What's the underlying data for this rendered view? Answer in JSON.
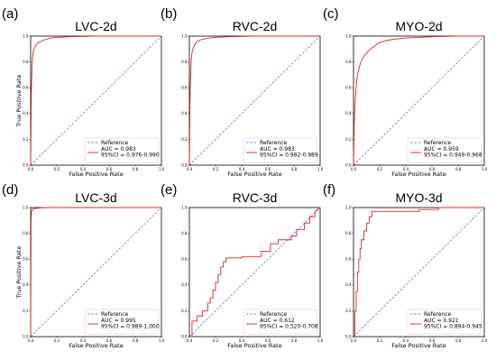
{
  "figure": {
    "ylabel": "True Positive Rate",
    "xlabel": "False Positive Rate",
    "legend_reference": "Reference",
    "colors": {
      "roc": "#d62728",
      "reference": "#4a5fd6"
    }
  },
  "chart_data": [
    {
      "panel": "(a)",
      "type": "line",
      "title": "LVC-2d",
      "xlabel": "False Positive Rate",
      "ylabel": "True Positive Rate",
      "xlim": [
        0,
        1
      ],
      "ylim": [
        0,
        1
      ],
      "xticks": [
        "0.0",
        "0.2",
        "0.4",
        "0.6",
        "0.8",
        "1.0"
      ],
      "yticks": [
        "0.0",
        "0.2",
        "0.4",
        "0.6",
        "0.8",
        "1.0"
      ],
      "legend_position": "lower-right",
      "series": [
        {
          "name": "Reference",
          "x": [
            0,
            1
          ],
          "y": [
            0,
            1
          ]
        },
        {
          "name": "AUC = 0.983\n95%CI = 0.976-0.990",
          "x": [
            0,
            0.005,
            0.01,
            0.015,
            0.02,
            0.03,
            0.04,
            0.05,
            0.06,
            0.08,
            0.1,
            0.12,
            0.15,
            0.2,
            0.3,
            0.5,
            1.0
          ],
          "y": [
            0,
            0.55,
            0.75,
            0.84,
            0.88,
            0.91,
            0.93,
            0.94,
            0.95,
            0.96,
            0.97,
            0.975,
            0.985,
            0.99,
            0.995,
            1.0,
            1.0
          ]
        }
      ]
    },
    {
      "panel": "(b)",
      "type": "line",
      "title": "RVC-2d",
      "xlabel": "False Positive Rate",
      "ylabel": "True Positive Rate",
      "xlim": [
        0,
        1
      ],
      "ylim": [
        0,
        1
      ],
      "xticks": [
        "0.0",
        "0.2",
        "0.4",
        "0.6",
        "0.8",
        "1.0"
      ],
      "yticks": [
        "0.0",
        "0.2",
        "0.4",
        "0.6",
        "0.8",
        "1.0"
      ],
      "legend_position": "lower-right",
      "series": [
        {
          "name": "Reference",
          "x": [
            0,
            1
          ],
          "y": [
            0,
            1
          ]
        },
        {
          "name": "AUC = 0.983\n95%CI = 0.982-0.989",
          "x": [
            0,
            0.005,
            0.01,
            0.015,
            0.02,
            0.03,
            0.04,
            0.05,
            0.07,
            0.1,
            0.15,
            0.2,
            0.3,
            0.5,
            1.0
          ],
          "y": [
            0,
            0.5,
            0.72,
            0.82,
            0.87,
            0.91,
            0.93,
            0.95,
            0.965,
            0.975,
            0.985,
            0.99,
            0.995,
            1.0,
            1.0
          ]
        }
      ]
    },
    {
      "panel": "(c)",
      "type": "line",
      "title": "MYO-2d",
      "xlabel": "False Positive Rate",
      "ylabel": "True Positive Rate",
      "xlim": [
        0,
        1
      ],
      "ylim": [
        0,
        1
      ],
      "xticks": [
        "0.0",
        "0.2",
        "0.4",
        "0.6",
        "0.8",
        "1.0"
      ],
      "yticks": [
        "0.0",
        "0.2",
        "0.4",
        "0.6",
        "0.8",
        "1.0"
      ],
      "legend_position": "lower-right",
      "series": [
        {
          "name": "Reference",
          "x": [
            0,
            1
          ],
          "y": [
            0,
            1
          ]
        },
        {
          "name": "AUC = 0.959\n95%CI = 0.949-0.968",
          "x": [
            0,
            0.005,
            0.01,
            0.02,
            0.03,
            0.05,
            0.07,
            0.1,
            0.13,
            0.17,
            0.2,
            0.25,
            0.3,
            0.4,
            0.5,
            0.6,
            0.8,
            1.0
          ],
          "y": [
            0,
            0.3,
            0.45,
            0.6,
            0.7,
            0.78,
            0.83,
            0.87,
            0.9,
            0.93,
            0.95,
            0.965,
            0.975,
            0.985,
            0.99,
            0.995,
            1.0,
            1.0
          ]
        }
      ]
    },
    {
      "panel": "(d)",
      "type": "line",
      "title": "LVC-3d",
      "xlabel": "False Positive Rate",
      "ylabel": "True Positive Rate",
      "xlim": [
        0,
        1
      ],
      "ylim": [
        0,
        1
      ],
      "xticks": [
        "0.0",
        "0.2",
        "0.4",
        "0.6",
        "0.8",
        "1.0"
      ],
      "yticks": [
        "0.0",
        "0.2",
        "0.4",
        "0.6",
        "0.8",
        "1.0"
      ],
      "legend_position": "lower-right",
      "series": [
        {
          "name": "Reference",
          "x": [
            0,
            1
          ],
          "y": [
            0,
            1
          ]
        },
        {
          "name": "AUC = 0.995\n95%CI = 0.989-1.000",
          "x": [
            0,
            0.003,
            0.006,
            0.01,
            0.02,
            0.05,
            0.1,
            1.0
          ],
          "y": [
            0,
            0.9,
            0.96,
            0.98,
            0.99,
            0.995,
            1.0,
            1.0
          ]
        }
      ]
    },
    {
      "panel": "(e)",
      "type": "line",
      "title": "RVC-3d",
      "xlabel": "False Positive Rate",
      "ylabel": "True Positive Rate",
      "xlim": [
        0,
        1
      ],
      "ylim": [
        0,
        1
      ],
      "xticks": [
        "0.0",
        "0.2",
        "0.4",
        "0.6",
        "0.8",
        "1.0"
      ],
      "yticks": [
        "0.0",
        "0.2",
        "0.4",
        "0.6",
        "0.8",
        "1.0"
      ],
      "legend_position": "lower-right",
      "series": [
        {
          "name": "Reference",
          "x": [
            0,
            1
          ],
          "y": [
            0,
            1
          ]
        },
        {
          "name": "AUC = 0.612\n95%CI = 0.520-0.708",
          "x": [
            0,
            0.02,
            0.02,
            0.06,
            0.06,
            0.1,
            0.1,
            0.14,
            0.14,
            0.16,
            0.16,
            0.18,
            0.18,
            0.2,
            0.2,
            0.22,
            0.22,
            0.24,
            0.24,
            0.26,
            0.26,
            0.28,
            0.28,
            0.4,
            0.4,
            0.55,
            0.55,
            0.62,
            0.62,
            0.68,
            0.68,
            0.78,
            0.78,
            0.82,
            0.82,
            0.88,
            0.88,
            0.92,
            0.92,
            0.96,
            0.96,
            1.0
          ],
          "y": [
            0,
            0,
            0.12,
            0.12,
            0.16,
            0.16,
            0.2,
            0.2,
            0.26,
            0.26,
            0.3,
            0.3,
            0.36,
            0.36,
            0.42,
            0.42,
            0.48,
            0.48,
            0.54,
            0.54,
            0.58,
            0.58,
            0.61,
            0.61,
            0.62,
            0.62,
            0.66,
            0.66,
            0.72,
            0.72,
            0.75,
            0.75,
            0.78,
            0.78,
            0.83,
            0.83,
            0.88,
            0.88,
            0.93,
            0.93,
            0.97,
            1.0
          ]
        }
      ]
    },
    {
      "panel": "(f)",
      "type": "line",
      "title": "MYO-3d",
      "xlabel": "False Positive Rate",
      "ylabel": "True Positive Rate",
      "xlim": [
        0,
        1
      ],
      "ylim": [
        0,
        1
      ],
      "xticks": [
        "0.0",
        "0.2",
        "0.4",
        "0.6",
        "0.8",
        "1.0"
      ],
      "yticks": [
        "0.0",
        "0.2",
        "0.4",
        "0.6",
        "0.8",
        "1.0"
      ],
      "legend_position": "lower-right",
      "series": [
        {
          "name": "Reference",
          "x": [
            0,
            1
          ],
          "y": [
            0,
            1
          ]
        },
        {
          "name": "AUC = 0.921\n95%CI = 0.894-0.945",
          "x": [
            0,
            0.01,
            0.01,
            0.02,
            0.02,
            0.03,
            0.03,
            0.04,
            0.04,
            0.05,
            0.05,
            0.06,
            0.06,
            0.08,
            0.08,
            0.1,
            0.1,
            0.12,
            0.12,
            0.14,
            0.14,
            0.5,
            0.5,
            0.65,
            0.65,
            1.0
          ],
          "y": [
            0,
            0,
            0.2,
            0.2,
            0.35,
            0.35,
            0.5,
            0.5,
            0.6,
            0.6,
            0.68,
            0.68,
            0.75,
            0.75,
            0.82,
            0.82,
            0.88,
            0.88,
            0.93,
            0.93,
            0.97,
            0.97,
            0.985,
            0.985,
            1.0,
            1.0
          ]
        }
      ]
    }
  ]
}
